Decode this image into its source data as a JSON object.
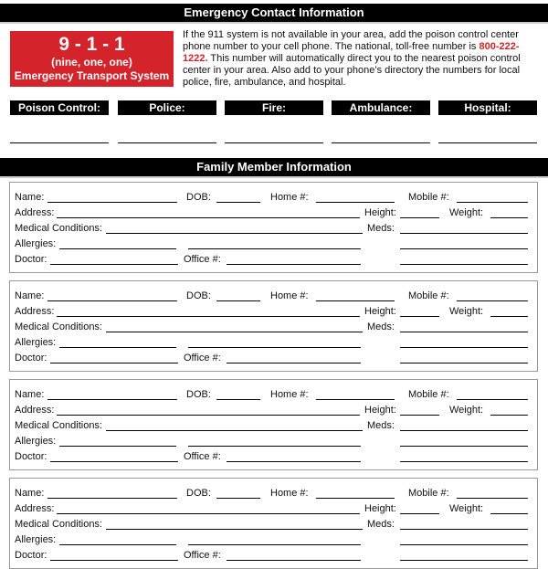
{
  "header": {
    "title": "Emergency Contact Information"
  },
  "emergency_box": {
    "number": "9 - 1 - 1",
    "spelled": "(nine, one, one)",
    "system": "Emergency Transport System"
  },
  "info": {
    "text_before": "If the 911 system is not available in your area, add the poison control center phone number to your cell phone. The national, toll-free number is ",
    "phone": "800-222-1222.",
    "text_after": " This number will automatically direct you to the nearest poison control center in your area. Also add to your phone’s directory the numbers for local police, fire, ambulance, and hospital."
  },
  "contacts": [
    "Poison Control:",
    "Police:",
    "Fire:",
    "Ambulance:",
    "Hospital:"
  ],
  "family": {
    "title": "Family Member Information",
    "card_count": 4,
    "fields": {
      "name": "Name:",
      "dob": "DOB:",
      "home": "Home #:",
      "mobile": "Mobile #:",
      "address": "Address:",
      "height": "Height:",
      "weight": "Weight:",
      "medical": "Medical Conditions:",
      "meds": "Meds:",
      "allergies": "Allergies:",
      "doctor": "Doctor:",
      "office": "Office #:"
    }
  },
  "colors": {
    "accent": "#d4232a",
    "bar": "#000000"
  }
}
